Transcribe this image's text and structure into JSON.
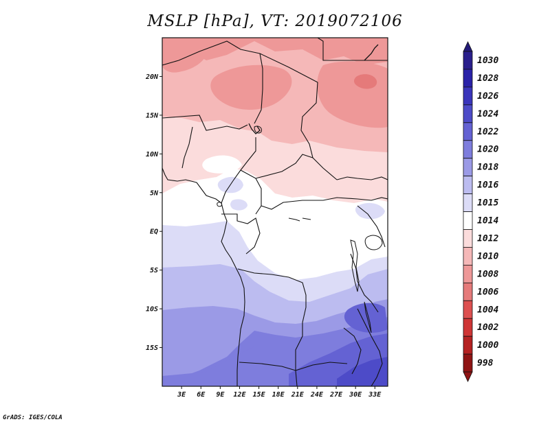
{
  "title": "MSLP [hPa], VT: 2019072106",
  "credit": "GrADS: IGES/COLA",
  "map": {
    "lon_range": [
      0,
      35
    ],
    "lat_range": [
      -20,
      25
    ],
    "lat_ticks": [
      {
        "value": 20,
        "label": "20N"
      },
      {
        "value": 15,
        "label": "15N"
      },
      {
        "value": 10,
        "label": "10N"
      },
      {
        "value": 5,
        "label": "5N"
      },
      {
        "value": 0,
        "label": "EQ"
      },
      {
        "value": -5,
        "label": "5S"
      },
      {
        "value": -10,
        "label": "10S"
      },
      {
        "value": -15,
        "label": "15S"
      }
    ],
    "lon_ticks": [
      {
        "value": 3,
        "label": "3E"
      },
      {
        "value": 6,
        "label": "6E"
      },
      {
        "value": 9,
        "label": "9E"
      },
      {
        "value": 12,
        "label": "12E"
      },
      {
        "value": 15,
        "label": "15E"
      },
      {
        "value": 18,
        "label": "18E"
      },
      {
        "value": 21,
        "label": "21E"
      },
      {
        "value": 24,
        "label": "24E"
      },
      {
        "value": 27,
        "label": "27E"
      },
      {
        "value": 30,
        "label": "30E"
      },
      {
        "value": 33,
        "label": "33E"
      }
    ]
  },
  "colorbar": {
    "levels": [
      {
        "label": "1030",
        "color": "#2a1f8c"
      },
      {
        "label": "1028",
        "color": "#2a22a8"
      },
      {
        "label": "1026",
        "color": "#3a35bb"
      },
      {
        "label": "1024",
        "color": "#4d4bc8"
      },
      {
        "label": "1022",
        "color": "#6462d3"
      },
      {
        "label": "1020",
        "color": "#7e7ddd"
      },
      {
        "label": "1018",
        "color": "#9b9ae6"
      },
      {
        "label": "1016",
        "color": "#bcbcf0"
      },
      {
        "label": "1015",
        "color": "#dcdcf7"
      },
      {
        "label": "1014",
        "color": "#ffffff"
      },
      {
        "label": "1012",
        "color": "#fbdcdc"
      },
      {
        "label": "1010",
        "color": "#f5b8b8"
      },
      {
        "label": "1008",
        "color": "#ee9898"
      },
      {
        "label": "1006",
        "color": "#e57a7a"
      },
      {
        "label": "1004",
        "color": "#dd5050"
      },
      {
        "label": "1002",
        "color": "#cf3535"
      },
      {
        "label": "1000",
        "color": "#b52222"
      },
      {
        "label": "998",
        "color": "#8f1414"
      }
    ],
    "top_arrow_color": "#231a78",
    "bottom_arrow_color": "#8f1414"
  },
  "field_bands": [
    {
      "level": "1008",
      "color": "#ee9898"
    },
    {
      "level": "1010",
      "color": "#f5b8b8"
    },
    {
      "level": "1012",
      "color": "#fbdcdc"
    },
    {
      "level": "1014",
      "color": "#ffffff"
    },
    {
      "level": "1015",
      "color": "#dcdcf7"
    },
    {
      "level": "1016",
      "color": "#bcbcf0"
    },
    {
      "level": "1018",
      "color": "#9b9ae6"
    },
    {
      "level": "1020",
      "color": "#7e7ddd"
    },
    {
      "level": "1022",
      "color": "#6462d3"
    },
    {
      "level": "1024",
      "color": "#4d4bc8"
    }
  ]
}
